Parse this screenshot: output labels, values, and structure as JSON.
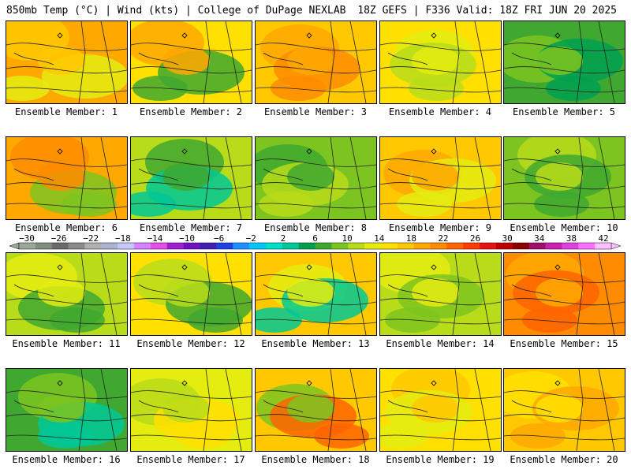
{
  "header": {
    "left": "850mb Temp (°C) | Wind (kts) | College of DuPage NEXLAB",
    "right": "18Z GEFS | F336 Valid: 18Z FRI JUN 20 2025"
  },
  "colorbar": {
    "labels": [
      "−30",
      "−26",
      "−22",
      "−18",
      "−14",
      "−10",
      "−6",
      "−2",
      "2",
      "6",
      "10",
      "14",
      "18",
      "22",
      "26",
      "30",
      "34",
      "38",
      "42"
    ],
    "colors": [
      "#9aa89a",
      "#7f8f7f",
      "#6a6a6a",
      "#8a8a8a",
      "#b0b0b0",
      "#a9b4cf",
      "#c8c8ff",
      "#d880ff",
      "#e64ee6",
      "#a020d0",
      "#7010c0",
      "#4020b0",
      "#2040e0",
      "#1e90ff",
      "#00c8ff",
      "#00e0c8",
      "#00c896",
      "#00a050",
      "#40a830",
      "#7cc420",
      "#b8dc1a",
      "#e4ec10",
      "#ffe000",
      "#ffc800",
      "#ffa800",
      "#ff8c00",
      "#ff6400",
      "#ff3c00",
      "#e61414",
      "#c00000",
      "#8c0000",
      "#a0106a",
      "#c820b0",
      "#e040e0",
      "#ff70ff",
      "#ffc0ff"
    ]
  },
  "panels": [
    {
      "label": "Ensemble Member: 1",
      "palette": [
        "#ffa800",
        "#ffc800",
        "#e4ec10"
      ]
    },
    {
      "label": "Ensemble Member: 2",
      "palette": [
        "#ffe000",
        "#ffa800",
        "#40a830"
      ]
    },
    {
      "label": "Ensemble Member: 3",
      "palette": [
        "#ffc800",
        "#ffa800",
        "#ff8c00"
      ]
    },
    {
      "label": "Ensemble Member: 4",
      "palette": [
        "#ffe000",
        "#e4ec10",
        "#b8dc1a"
      ]
    },
    {
      "label": "Ensemble Member: 5",
      "palette": [
        "#40a830",
        "#7cc420",
        "#00a050"
      ]
    },
    {
      "label": "Ensemble Member: 6",
      "palette": [
        "#ffa800",
        "#ff8c00",
        "#7cc420"
      ]
    },
    {
      "label": "Ensemble Member: 7",
      "palette": [
        "#b8dc1a",
        "#40a830",
        "#00c896"
      ]
    },
    {
      "label": "Ensemble Member: 8",
      "palette": [
        "#7cc420",
        "#40a830",
        "#b8dc1a"
      ]
    },
    {
      "label": "Ensemble Member: 9",
      "palette": [
        "#ffc800",
        "#ffa800",
        "#e4ec10"
      ]
    },
    {
      "label": "Ensemble Member: 10",
      "palette": [
        "#7cc420",
        "#b8dc1a",
        "#40a830"
      ]
    },
    {
      "label": "Ensemble Member: 11",
      "palette": [
        "#b8dc1a",
        "#e4ec10",
        "#40a830"
      ]
    },
    {
      "label": "Ensemble Member: 12",
      "palette": [
        "#ffe000",
        "#b8dc1a",
        "#40a830"
      ]
    },
    {
      "label": "Ensemble Member: 13",
      "palette": [
        "#ffc800",
        "#e4ec10",
        "#00c896"
      ]
    },
    {
      "label": "Ensemble Member: 14",
      "palette": [
        "#b8dc1a",
        "#e4ec10",
        "#7cc420"
      ]
    },
    {
      "label": "Ensemble Member: 15",
      "palette": [
        "#ff8c00",
        "#ffa800",
        "#ff6400"
      ]
    },
    {
      "label": "Ensemble Member: 16",
      "palette": [
        "#40a830",
        "#7cc420",
        "#00c896"
      ]
    },
    {
      "label": "Ensemble Member: 17",
      "palette": [
        "#e4ec10",
        "#b8dc1a",
        "#ffe000"
      ]
    },
    {
      "label": "Ensemble Member: 18",
      "palette": [
        "#ffc800",
        "#7cc420",
        "#ff6400"
      ]
    },
    {
      "label": "Ensemble Member: 19",
      "palette": [
        "#ffe000",
        "#ffc800",
        "#e4ec10"
      ]
    },
    {
      "label": "Ensemble Member: 20",
      "palette": [
        "#ffc800",
        "#ffe000",
        "#ffa800"
      ]
    }
  ]
}
